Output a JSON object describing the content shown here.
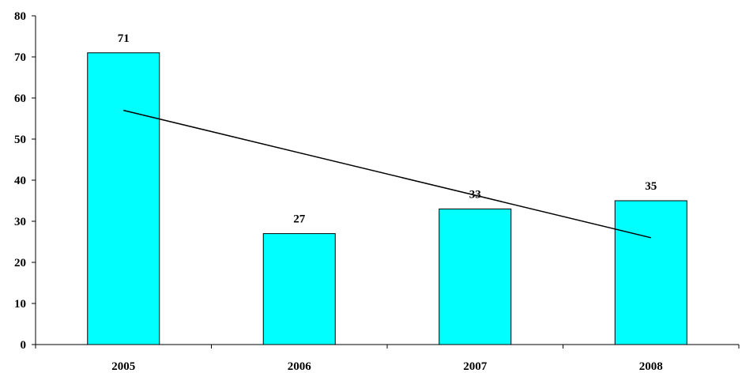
{
  "chart_data": {
    "type": "bar",
    "categories": [
      "2005",
      "2006",
      "2007",
      "2008"
    ],
    "values": [
      71,
      27,
      33,
      35
    ],
    "data_labels": [
      "71",
      "27",
      "33",
      "35"
    ],
    "ylim": [
      0,
      80
    ],
    "yticks": [
      0,
      10,
      20,
      30,
      40,
      50,
      60,
      70,
      80
    ],
    "ytick_labels": [
      "0",
      "10",
      "20",
      "30",
      "40",
      "50",
      "60",
      "70",
      "80"
    ],
    "trendline": {
      "type": "linear",
      "start": {
        "x": "2005",
        "y": 57
      },
      "end": {
        "x": "2008",
        "y": 26
      }
    },
    "title": "",
    "xlabel": "",
    "ylabel": "",
    "grid": false,
    "legend": "none",
    "bar_color": "#00FFFF",
    "bar_edge_color": "#000000",
    "trendline_color": "#000000"
  }
}
